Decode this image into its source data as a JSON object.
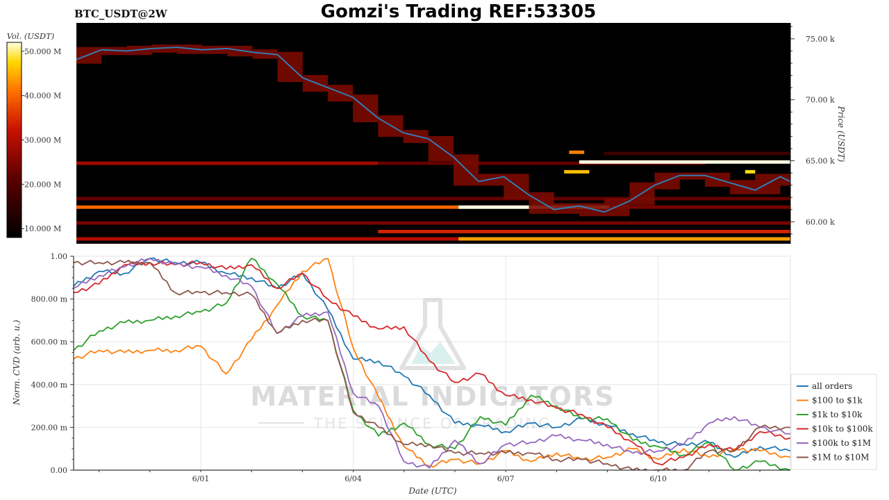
{
  "header": {
    "symbol": "BTC_USDT@2W",
    "title": "Gomzi's Trading REF:53305"
  },
  "colorbar": {
    "label": "Vol. (USDT)",
    "ticks": [
      "50.000 M",
      "40.000 M",
      "30.000 M",
      "20.000 M",
      "10.000 M"
    ],
    "tick_values": [
      50,
      40,
      30,
      20,
      10
    ],
    "range": [
      8,
      52
    ]
  },
  "watermark": {
    "main": "MATERIAL INDICATORS",
    "sub": "THE SCIENCE OF TRADING"
  },
  "chart_data": [
    {
      "type": "heatmap",
      "ylabel": "Price (USDT)",
      "yticks": [
        "75.00 k",
        "70.00 k",
        "65.00 k",
        "60.00 k"
      ],
      "ytick_values": [
        75000,
        70000,
        65000,
        60000
      ],
      "ylim": [
        58200,
        76300
      ],
      "x_range_days": [
        -4.0,
        10.2
      ],
      "value_unit": "M USDT",
      "price_series": {
        "x": [
          -4.0,
          -3.5,
          -3.0,
          -2.5,
          -2.0,
          -1.5,
          -1.0,
          -0.5,
          0.0,
          0.5,
          1.0,
          1.5,
          2.0,
          2.5,
          3.0,
          3.5,
          4.0,
          4.5,
          5.0,
          5.5,
          6.0,
          6.5,
          7.0,
          7.5,
          8.0,
          8.5,
          9.0,
          9.5,
          10.0,
          10.2
        ],
        "y": [
          73300,
          74100,
          74000,
          74200,
          74300,
          74100,
          74200,
          73900,
          73700,
          71800,
          71000,
          70200,
          68500,
          67300,
          66800,
          65300,
          63300,
          63700,
          62200,
          61000,
          61300,
          60800,
          61700,
          63000,
          63800,
          63800,
          63200,
          62600,
          63700,
          63300
        ]
      },
      "bands": [
        {
          "price": 61200,
          "x": [
            -4.0,
            3.6
          ],
          "value": 40
        },
        {
          "price": 61200,
          "x": [
            3.6,
            6.6
          ],
          "value": 52
        },
        {
          "price": 61200,
          "x": [
            6.6,
            10.2
          ],
          "value": 24
        },
        {
          "price": 61900,
          "x": [
            -4.0,
            10.2
          ],
          "value": 22
        },
        {
          "price": 59900,
          "x": [
            -4.0,
            10.2
          ],
          "value": 24
        },
        {
          "price": 59200,
          "x": [
            2.0,
            10.2
          ],
          "value": 34
        },
        {
          "price": 58600,
          "x": [
            -4.0,
            10.2
          ],
          "value": 30
        },
        {
          "price": 58600,
          "x": [
            3.6,
            10.2
          ],
          "value": 44
        },
        {
          "price": 64800,
          "x": [
            -4.0,
            2.0
          ],
          "value": 28
        },
        {
          "price": 64800,
          "x": [
            2.0,
            8.5
          ],
          "value": 22
        },
        {
          "price": 64900,
          "x": [
            6.0,
            10.2
          ],
          "value": 52
        },
        {
          "price": 65600,
          "x": [
            6.5,
            10.2
          ],
          "value": 17
        },
        {
          "price": 65700,
          "x": [
            5.8,
            6.1
          ],
          "value": 42
        },
        {
          "price": 64100,
          "x": [
            5.7,
            6.2
          ],
          "value": 46
        },
        {
          "price": 64100,
          "x": [
            9.3,
            9.5
          ],
          "value": 48
        }
      ]
    },
    {
      "type": "line",
      "xlabel": "Date (UTC)",
      "ylabel": "Norm. CVD (arb. u.)",
      "xticks": [
        "6/01",
        "6/04",
        "6/07",
        "6/10"
      ],
      "xtick_values": [
        0,
        3,
        6,
        9
      ],
      "xlim": [
        -2.5,
        11.6
      ],
      "yticks": [
        "1.00",
        "800.00 m",
        "600.00 m",
        "400.00 m",
        "200.00 m",
        "0.00"
      ],
      "ytick_values": [
        1.0,
        0.8,
        0.6,
        0.4,
        0.2,
        0.0
      ],
      "ylim": [
        0,
        1
      ],
      "grid": true,
      "legend_position": "right",
      "x": [
        -2.5,
        -2.0,
        -1.5,
        -1.0,
        -0.5,
        0.0,
        0.5,
        1.0,
        1.5,
        2.0,
        2.5,
        3.0,
        3.5,
        4.0,
        4.5,
        5.0,
        5.5,
        6.0,
        6.5,
        7.0,
        7.5,
        8.0,
        8.5,
        9.0,
        9.5,
        10.0,
        10.5,
        11.0,
        11.6
      ],
      "series": [
        {
          "name": "all orders",
          "color": "#1f77b4",
          "values": [
            0.86,
            0.93,
            0.92,
            0.99,
            0.97,
            0.97,
            0.92,
            0.9,
            0.85,
            0.92,
            0.75,
            0.52,
            0.51,
            0.44,
            0.35,
            0.22,
            0.21,
            0.18,
            0.22,
            0.2,
            0.24,
            0.21,
            0.17,
            0.13,
            0.12,
            0.13,
            0.06,
            0.11,
            0.09
          ]
        },
        {
          "name": "$100 to $1k",
          "color": "#ff7f0e",
          "values": [
            0.52,
            0.56,
            0.55,
            0.56,
            0.56,
            0.58,
            0.45,
            0.61,
            0.77,
            0.93,
            0.99,
            0.57,
            0.34,
            0.11,
            0.02,
            0.05,
            0.03,
            0.09,
            0.04,
            0.08,
            0.05,
            0.06,
            0.1,
            0.05,
            0.1,
            0.06,
            0.1,
            0.09,
            0.06
          ]
        },
        {
          "name": "$1k to $10k",
          "color": "#2ca02c",
          "values": [
            0.56,
            0.65,
            0.69,
            0.7,
            0.72,
            0.74,
            0.78,
            0.99,
            0.87,
            0.72,
            0.7,
            0.28,
            0.16,
            0.22,
            0.12,
            0.1,
            0.25,
            0.21,
            0.35,
            0.3,
            0.24,
            0.24,
            0.14,
            0.11,
            0.07,
            0.13,
            0.0,
            0.04,
            0.0
          ]
        },
        {
          "name": "$10k to $100k",
          "color": "#d62728",
          "values": [
            0.83,
            0.87,
            0.96,
            0.97,
            0.96,
            0.97,
            0.94,
            0.96,
            0.85,
            0.92,
            0.8,
            0.72,
            0.66,
            0.67,
            0.51,
            0.41,
            0.45,
            0.35,
            0.33,
            0.29,
            0.26,
            0.2,
            0.13,
            0.03,
            0.06,
            0.12,
            0.09,
            0.18,
            0.15
          ]
        },
        {
          "name": "$100k to $1M",
          "color": "#9467bd",
          "values": [
            0.85,
            0.91,
            0.95,
            0.99,
            0.96,
            0.95,
            0.91,
            0.86,
            0.64,
            0.72,
            0.74,
            0.36,
            0.3,
            0.04,
            0.01,
            0.14,
            0.03,
            0.12,
            0.13,
            0.16,
            0.14,
            0.12,
            0.08,
            0.09,
            0.12,
            0.22,
            0.25,
            0.2,
            0.17
          ]
        },
        {
          "name": "$1M to $10M",
          "color": "#8c564b",
          "values": [
            0.97,
            0.97,
            0.97,
            0.97,
            0.83,
            0.83,
            0.83,
            0.82,
            0.64,
            0.7,
            0.7,
            0.27,
            0.2,
            0.12,
            0.12,
            0.08,
            0.08,
            0.08,
            0.08,
            0.05,
            0.05,
            0.03,
            0.0,
            0.0,
            0.0,
            0.09,
            0.09,
            0.2,
            0.2
          ]
        }
      ]
    }
  ]
}
